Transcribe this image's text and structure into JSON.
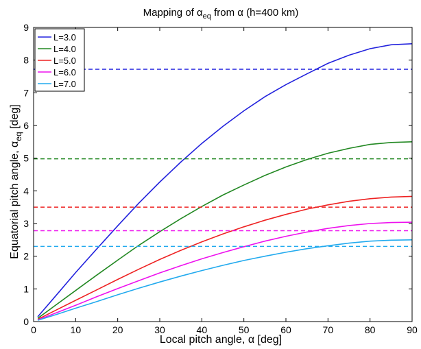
{
  "chart_data": {
    "type": "line",
    "title_parts": {
      "prefix": "Mapping of ",
      "symbol": "α",
      "subscript": "eq",
      "suffix": " from α (h=400 km)"
    },
    "xlabel": "Local pitch angle, α [deg]",
    "ylabel_parts": {
      "prefix": "Equatorial pitch angle, ",
      "symbol": "α",
      "subscript": "eq",
      "suffix": " [deg]"
    },
    "xlim": [
      0,
      90
    ],
    "ylim": [
      0,
      9
    ],
    "xticks": [
      0,
      10,
      20,
      30,
      40,
      50,
      60,
      70,
      80,
      90
    ],
    "yticks": [
      0,
      1,
      2,
      3,
      4,
      5,
      6,
      7,
      8,
      9
    ],
    "grid": false,
    "legend_position": "top-left",
    "series": [
      {
        "name": "L=3.0",
        "color": "#2222dd",
        "x": [
          1,
          5,
          10,
          15,
          20,
          25,
          30,
          35,
          40,
          45,
          50,
          55,
          60,
          65,
          70,
          75,
          80,
          85,
          90
        ],
        "values": [
          0.15,
          0.75,
          1.5,
          2.22,
          2.93,
          3.62,
          4.27,
          4.88,
          5.45,
          5.97,
          6.45,
          6.88,
          7.25,
          7.58,
          7.9,
          8.15,
          8.35,
          8.47,
          8.5
        ],
        "dashed_level": 7.72
      },
      {
        "name": "L=4.0",
        "color": "#228822",
        "x": [
          1,
          5,
          10,
          15,
          20,
          25,
          30,
          35,
          40,
          45,
          50,
          55,
          60,
          65,
          70,
          75,
          80,
          85,
          90
        ],
        "values": [
          0.1,
          0.48,
          0.95,
          1.42,
          1.88,
          2.33,
          2.75,
          3.15,
          3.52,
          3.87,
          4.18,
          4.47,
          4.73,
          4.96,
          5.15,
          5.3,
          5.42,
          5.48,
          5.5
        ],
        "dashed_level": 4.98
      },
      {
        "name": "L=5.0",
        "color": "#ee2222",
        "x": [
          1,
          5,
          10,
          15,
          20,
          25,
          30,
          35,
          40,
          45,
          50,
          55,
          60,
          65,
          70,
          75,
          80,
          85,
          90
        ],
        "values": [
          0.07,
          0.33,
          0.65,
          0.97,
          1.29,
          1.6,
          1.9,
          2.18,
          2.44,
          2.68,
          2.9,
          3.1,
          3.28,
          3.44,
          3.57,
          3.68,
          3.76,
          3.81,
          3.83
        ],
        "dashed_level": 3.5
      },
      {
        "name": "L=6.0",
        "color": "#ee11ee",
        "x": [
          1,
          5,
          10,
          15,
          20,
          25,
          30,
          35,
          40,
          45,
          50,
          55,
          60,
          65,
          70,
          75,
          80,
          85,
          90
        ],
        "values": [
          0.05,
          0.25,
          0.5,
          0.76,
          1.01,
          1.25,
          1.49,
          1.71,
          1.92,
          2.11,
          2.29,
          2.46,
          2.61,
          2.74,
          2.85,
          2.94,
          3.0,
          3.03,
          3.04
        ],
        "dashed_level": 2.78
      },
      {
        "name": "L=7.0",
        "color": "#22aaee",
        "x": [
          1,
          5,
          10,
          15,
          20,
          25,
          30,
          35,
          40,
          45,
          50,
          55,
          60,
          65,
          70,
          75,
          80,
          85,
          90
        ],
        "values": [
          0.04,
          0.2,
          0.41,
          0.61,
          0.82,
          1.02,
          1.21,
          1.39,
          1.56,
          1.72,
          1.87,
          2.0,
          2.12,
          2.23,
          2.32,
          2.4,
          2.46,
          2.49,
          2.5
        ],
        "dashed_level": 2.3
      }
    ]
  }
}
